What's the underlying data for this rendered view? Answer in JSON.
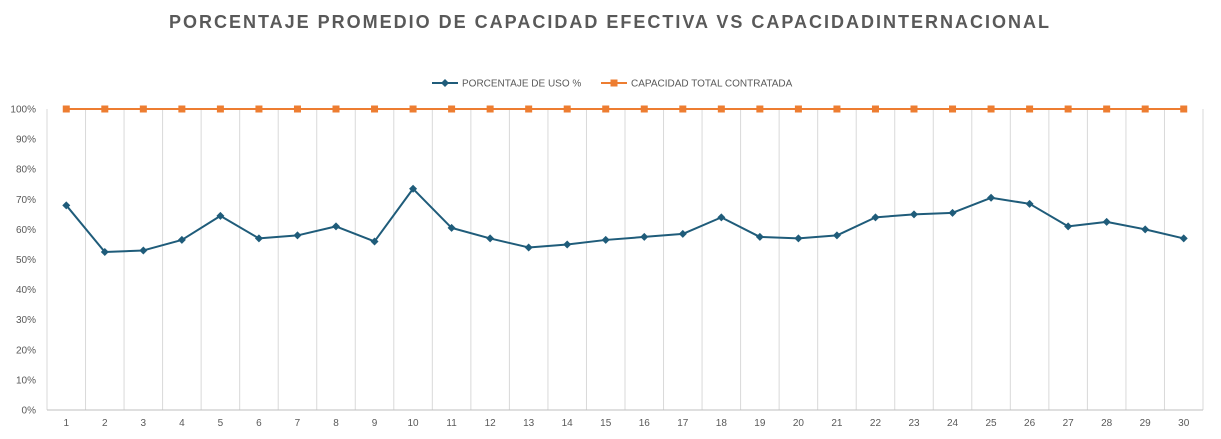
{
  "chart_data": {
    "type": "line",
    "title": "PORCENTAJE PROMEDIO DE CAPACIDAD EFECTIVA VS CAPACIDADINTERNACIONAL",
    "x": [
      "1",
      "2",
      "3",
      "4",
      "5",
      "6",
      "7",
      "8",
      "9",
      "10",
      "11",
      "12",
      "13",
      "14",
      "15",
      "16",
      "17",
      "18",
      "19",
      "20",
      "21",
      "22",
      "23",
      "24",
      "25",
      "26",
      "27",
      "28",
      "29",
      "30"
    ],
    "yticks": [
      "0%",
      "10%",
      "20%",
      "30%",
      "40%",
      "50%",
      "60%",
      "70%",
      "80%",
      "90%",
      "100%"
    ],
    "ylim": [
      0,
      100
    ],
    "grid": "vertical",
    "legend_position": "top",
    "series": [
      {
        "name": "PORCENTAJE DE USO %",
        "color": "#1f5c7a",
        "marker": "diamond",
        "values": [
          68,
          52.5,
          53,
          56.5,
          64.5,
          57,
          58,
          61,
          56,
          73.5,
          60.5,
          57,
          54,
          55,
          56.5,
          57.5,
          58.5,
          64,
          57.5,
          57,
          58,
          64,
          65,
          65.5,
          70.5,
          68.5,
          61,
          62.5,
          60,
          57
        ]
      },
      {
        "name": "CAPACIDAD TOTAL CONTRATADA",
        "color": "#ed7d31",
        "marker": "square",
        "values": [
          100,
          100,
          100,
          100,
          100,
          100,
          100,
          100,
          100,
          100,
          100,
          100,
          100,
          100,
          100,
          100,
          100,
          100,
          100,
          100,
          100,
          100,
          100,
          100,
          100,
          100,
          100,
          100,
          100,
          100
        ]
      }
    ]
  }
}
